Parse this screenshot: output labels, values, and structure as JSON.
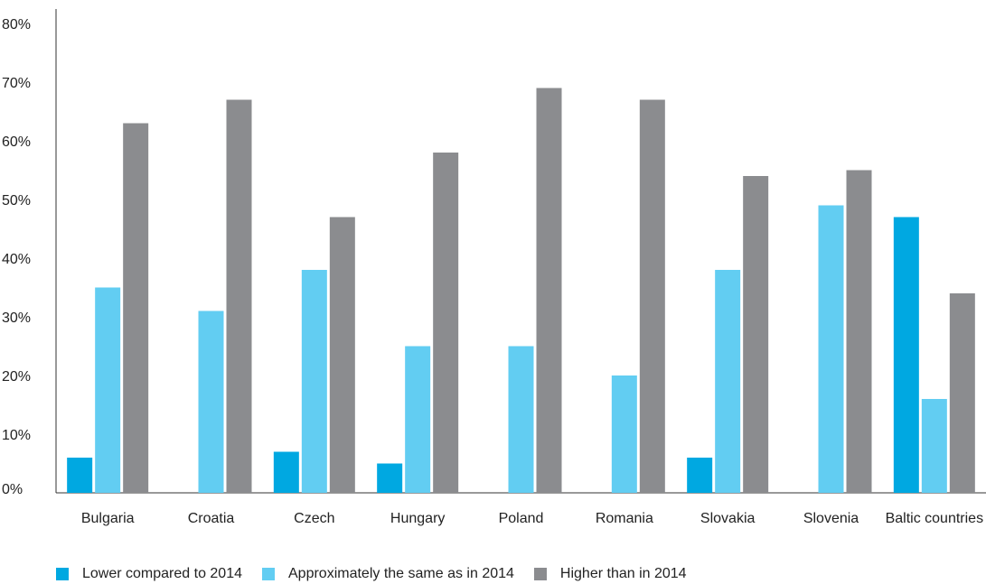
{
  "chart_data": {
    "type": "bar",
    "categories": [
      "Bulgaria",
      "Croatia",
      "Czech",
      "Hungary",
      "Poland",
      "Romania",
      "Slovakia",
      "Slovenia",
      "Baltic countries"
    ],
    "series": [
      {
        "name": "Lower compared to 2014",
        "color": "#00a8e1",
        "values": [
          6,
          0,
          7,
          5,
          0,
          0,
          6,
          0,
          47
        ]
      },
      {
        "name": "Approximately the same as in 2014",
        "color": "#62cdf2",
        "values": [
          35,
          31,
          38,
          25,
          25,
          20,
          38,
          49,
          16
        ]
      },
      {
        "name": "Higher than in 2014",
        "color": "#8b8c8f",
        "values": [
          63,
          67,
          47,
          58,
          69,
          67,
          54,
          55,
          34
        ]
      }
    ],
    "yticks": [
      "0%",
      "10%",
      "20%",
      "30%",
      "40%",
      "50%",
      "60%",
      "70%",
      "80%"
    ],
    "ylim": [
      0,
      80
    ],
    "xlabel": "",
    "ylabel": "",
    "legend_position": "bottom-left",
    "grid": false
  }
}
